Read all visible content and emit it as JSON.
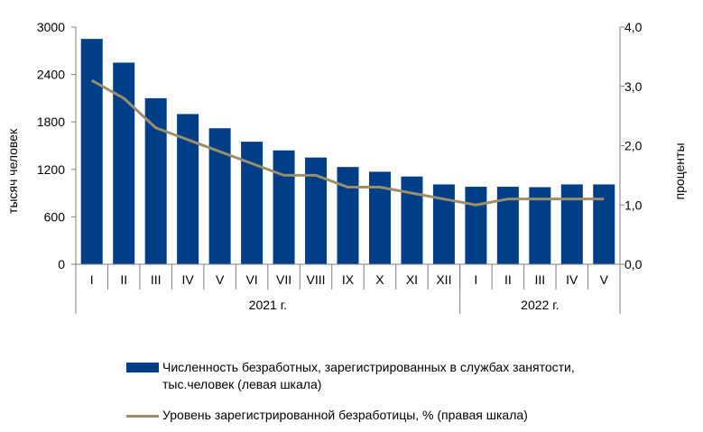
{
  "chart_data": {
    "type": "bar",
    "categories": [
      "I",
      "II",
      "III",
      "IV",
      "V",
      "VI",
      "VII",
      "VIII",
      "IX",
      "X",
      "XI",
      "XII",
      "I",
      "II",
      "III",
      "IV",
      "V"
    ],
    "groups": [
      {
        "label": "2021 г.",
        "count": 12
      },
      {
        "label": "2022 г.",
        "count": 5
      }
    ],
    "series": [
      {
        "name": "Численность безработных, зарегистрированных в  службах занятости, тыс.человек (левая шкала)",
        "type": "bar",
        "axis": "left",
        "color": "#003f87",
        "values": [
          2850,
          2550,
          2100,
          1900,
          1720,
          1550,
          1440,
          1350,
          1230,
          1170,
          1110,
          1010,
          980,
          980,
          975,
          1010,
          1010
        ]
      },
      {
        "name": "Уровень зарегистрированной безработицы, % (правая шкала)",
        "type": "line",
        "axis": "right",
        "color": "#9a8f6a",
        "values": [
          3.1,
          2.8,
          2.3,
          2.1,
          1.9,
          1.7,
          1.5,
          1.5,
          1.3,
          1.3,
          1.2,
          1.1,
          1.0,
          1.1,
          1.1,
          1.1,
          1.1
        ]
      }
    ],
    "left_axis": {
      "label": "тысяч человек",
      "ylim": [
        0,
        3000
      ],
      "ticks": [
        0,
        600,
        1200,
        1800,
        2400,
        3000
      ],
      "tick_labels": [
        "0",
        "600",
        "1200",
        "1800",
        "2400",
        "3000"
      ]
    },
    "right_axis": {
      "label": "проценты",
      "ylim": [
        0,
        4
      ],
      "ticks": [
        0,
        1,
        2,
        3,
        4
      ],
      "tick_labels": [
        "0,0",
        "1,0",
        "2,0",
        "3,0",
        "4,0"
      ]
    },
    "grid": false,
    "legend_position": "bottom"
  }
}
